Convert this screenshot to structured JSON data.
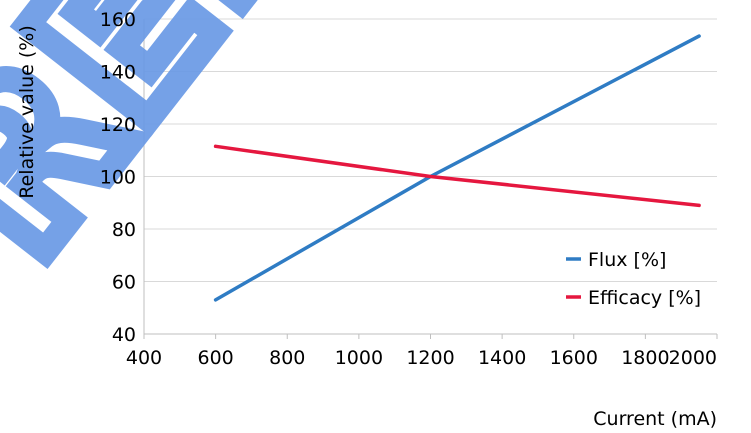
{
  "chart_data": {
    "type": "line",
    "title": "",
    "xlabel": "Current (mA)",
    "ylabel": "Relative value (%)",
    "xlim": [
      400,
      2000
    ],
    "ylim": [
      40,
      160
    ],
    "x_ticks": [
      "400",
      "600",
      "800",
      "1000",
      "1200",
      "1400",
      "1600",
      "1800",
      "2000"
    ],
    "y_ticks": [
      "40",
      "60",
      "80",
      "100",
      "120",
      "140",
      "160"
    ],
    "grid": "horizontal",
    "legend_position": "bottom-right",
    "series": [
      {
        "name": "Flux [%]",
        "color": "#2f7cc4",
        "points": [
          [
            600,
            53
          ],
          [
            1200,
            100
          ],
          [
            1950,
            153.5
          ]
        ]
      },
      {
        "name": "Efficacy [%]",
        "color": "#e5173f",
        "points": [
          [
            600,
            111.5
          ],
          [
            1200,
            100
          ],
          [
            1950,
            89
          ]
        ]
      }
    ]
  },
  "watermark": {
    "text": "PRELIMINARY",
    "color": "#6a9ae6"
  }
}
